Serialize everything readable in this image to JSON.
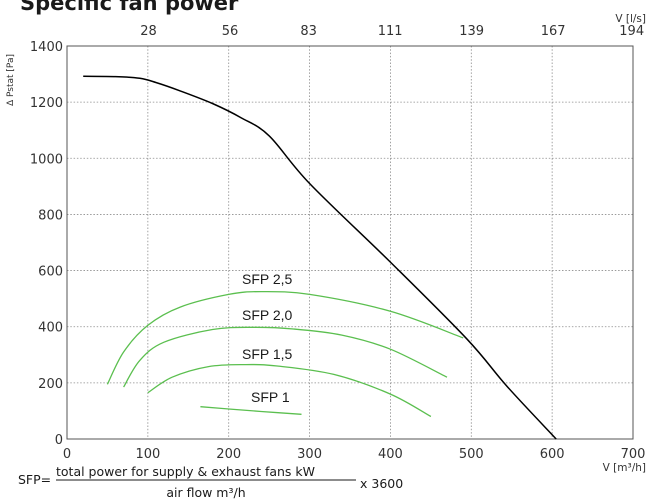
{
  "chart_data": {
    "type": "line",
    "title": "Specific fan power",
    "ylabel": "Δ Pstat [Pa]",
    "xlabel": "V [m³/h]",
    "x2label": "V [l/s]",
    "xlim": [
      0,
      700
    ],
    "ylim": [
      0,
      1400
    ],
    "x_ticks": [
      "0",
      "100",
      "200",
      "300",
      "400",
      "500",
      "600",
      "700"
    ],
    "x2_ticks": [
      "28",
      "56",
      "83",
      "111",
      "139",
      "167",
      "194"
    ],
    "y_ticks": [
      "0",
      "200",
      "400",
      "600",
      "800",
      "1000",
      "1200",
      "1400"
    ],
    "grid": true,
    "series": [
      {
        "kind": "fan-curve",
        "color": "#000000",
        "points": [
          [
            20,
            1292
          ],
          [
            60,
            1291
          ],
          [
            90,
            1285
          ],
          [
            110,
            1270
          ],
          [
            140,
            1240
          ],
          [
            180,
            1195
          ],
          [
            215,
            1145
          ],
          [
            250,
            1080
          ],
          [
            300,
            910
          ],
          [
            400,
            630
          ],
          [
            495,
            355
          ],
          [
            545,
            185
          ],
          [
            605,
            0
          ]
        ]
      },
      {
        "name": "SFP 2,5",
        "color": "#5bbf4f",
        "points": [
          [
            50,
            195
          ],
          [
            70,
            310
          ],
          [
            100,
            405
          ],
          [
            140,
            470
          ],
          [
            200,
            515
          ],
          [
            240,
            525
          ],
          [
            300,
            515
          ],
          [
            400,
            455
          ],
          [
            490,
            360
          ]
        ]
      },
      {
        "name": "SFP 2,0",
        "color": "#5bbf4f",
        "points": [
          [
            70,
            185
          ],
          [
            90,
            280
          ],
          [
            120,
            345
          ],
          [
            180,
            390
          ],
          [
            230,
            398
          ],
          [
            280,
            392
          ],
          [
            340,
            370
          ],
          [
            400,
            320
          ],
          [
            470,
            220
          ]
        ]
      },
      {
        "name": "SFP 1,5",
        "color": "#5bbf4f",
        "points": [
          [
            100,
            165
          ],
          [
            130,
            220
          ],
          [
            175,
            258
          ],
          [
            220,
            265
          ],
          [
            260,
            260
          ],
          [
            330,
            230
          ],
          [
            400,
            160
          ],
          [
            450,
            80
          ]
        ]
      },
      {
        "name": "SFP 1",
        "color": "#5bbf4f",
        "points": [
          [
            165,
            115
          ],
          [
            200,
            107
          ],
          [
            240,
            98
          ],
          [
            290,
            88
          ]
        ]
      }
    ],
    "labels": [
      "SFP 2,5",
      "SFP 2,0",
      "SFP 1,5",
      "SFP 1"
    ]
  },
  "formula": {
    "prefix": "SFP=",
    "numerator": "total power for supply & exhaust fans kW",
    "denominator": "air flow m³/h",
    "suffix": "x 3600"
  }
}
